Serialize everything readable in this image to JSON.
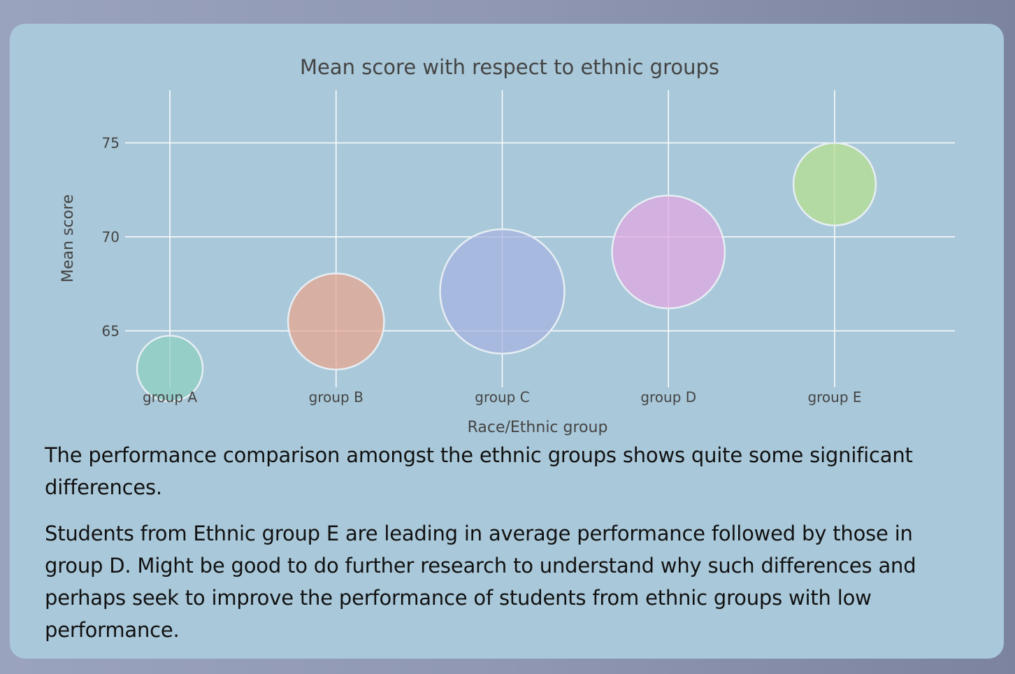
{
  "chart_data": {
    "type": "scatter",
    "title": "Mean score with respect to ethnic groups",
    "xlabel": "Race/Ethnic group",
    "ylabel": "Mean score",
    "categories": [
      "group A",
      "group B",
      "group C",
      "group D",
      "group E"
    ],
    "values": [
      63.0,
      65.5,
      67.1,
      69.2,
      72.8
    ],
    "bubble_sizes": [
      89,
      190,
      319,
      262,
      140
    ],
    "ylim": [
      62.0,
      77.8
    ],
    "yticks": [
      65,
      70,
      75
    ],
    "grid": true,
    "legend": "none",
    "colors": [
      "#8fd0c0",
      "#e8a890",
      "#a8b4e0",
      "#e0a8e0",
      "#b8e090"
    ]
  },
  "description": {
    "paragraph1": "The performance comparison amongst the ethnic groups shows quite some significant differences.",
    "paragraph2": "Students from Ethnic group E are leading in average performance followed by those in group D. Might be good to do further research to understand why such differences and perhaps seek to improve the performance of students from ethnic groups with low performance."
  }
}
